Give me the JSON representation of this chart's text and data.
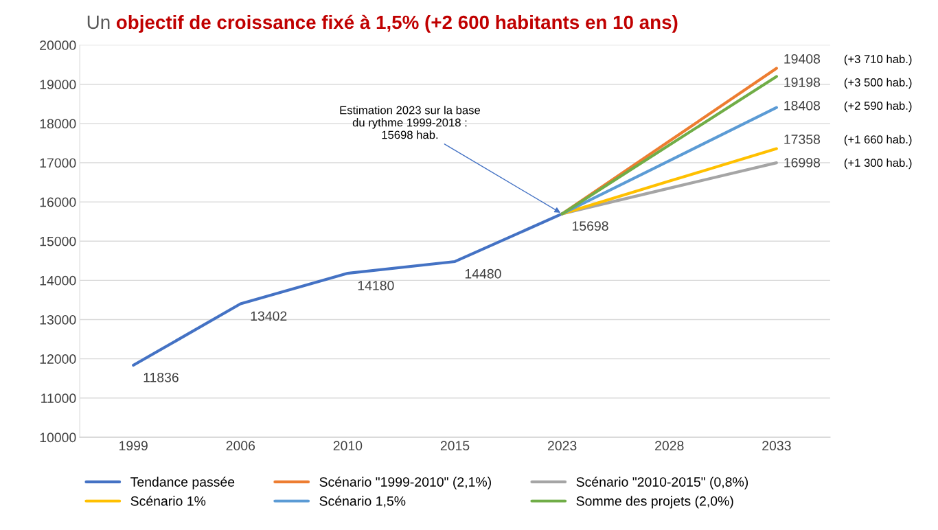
{
  "chart_data": {
    "type": "line",
    "title": "Un objectif de croissance fixé à 1,5% (+2 600 habitants en 10 ans)",
    "categories": [
      "1999",
      "2006",
      "2010",
      "2015",
      "2023",
      "2028",
      "2033"
    ],
    "series": [
      {
        "name": "Tendance passée",
        "color": "#4472c4",
        "values": [
          11836,
          13402,
          14180,
          14480,
          15698,
          null,
          null
        ],
        "value_labels": [
          "11836",
          "13402",
          "14180",
          "14480",
          "15698",
          null,
          null
        ]
      },
      {
        "name": "Scénario \"1999-2010\" (2,1%)",
        "color": "#ed7d31",
        "values": [
          null,
          null,
          null,
          null,
          15698,
          17550,
          19408
        ],
        "value_labels": [
          null,
          null,
          null,
          null,
          null,
          null,
          "19408"
        ]
      },
      {
        "name": "Scénario \"2010-2015\" (0,8%)",
        "color": "#a5a5a5",
        "values": [
          null,
          null,
          null,
          null,
          15698,
          16350,
          16998
        ],
        "value_labels": [
          null,
          null,
          null,
          null,
          null,
          null,
          "16998"
        ]
      },
      {
        "name": "Scénario 1%",
        "color": "#ffc000",
        "values": [
          null,
          null,
          null,
          null,
          15698,
          16530,
          17358
        ],
        "value_labels": [
          null,
          null,
          null,
          null,
          null,
          null,
          "17358"
        ]
      },
      {
        "name": "Scénario 1,5%",
        "color": "#5b9bd5",
        "values": [
          null,
          null,
          null,
          null,
          15698,
          17050,
          18408
        ],
        "value_labels": [
          null,
          null,
          null,
          null,
          null,
          null,
          "18408"
        ]
      },
      {
        "name": "Somme des projets (2,0%)",
        "color": "#70ad47",
        "values": [
          null,
          null,
          null,
          null,
          15698,
          17450,
          19198
        ],
        "value_labels": [
          null,
          null,
          null,
          null,
          null,
          null,
          "19198"
        ]
      }
    ],
    "ylim": [
      10000,
      20000
    ],
    "yticks": [
      10000,
      11000,
      12000,
      13000,
      14000,
      15000,
      16000,
      17000,
      18000,
      19000,
      20000
    ],
    "grid": "y",
    "legend": "bottom",
    "marker": "none",
    "line_style": "solid",
    "annotations": [
      {
        "text": "Estimation 2023 sur la base\ndu rythme 1999-2018 :\n15698 hab.",
        "x": "2023",
        "y": 15698
      },
      "(+3 710 hab.)",
      "(+3 500 hab.)",
      "(+2 590 hab.)",
      "(+1 660 hab.)",
      "(+1 300 hab.)"
    ]
  }
}
